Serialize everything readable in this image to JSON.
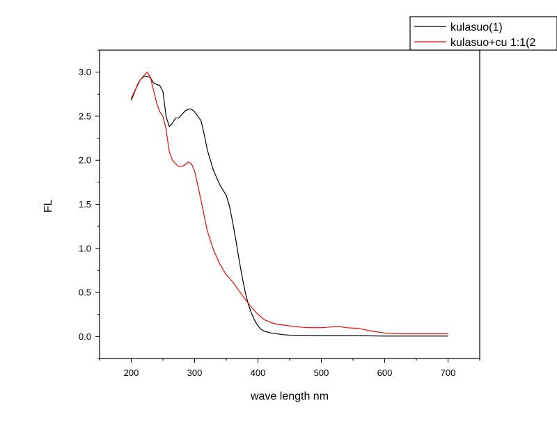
{
  "chart_data": {
    "type": "line",
    "xlabel": "wave length nm",
    "ylabel": "FL",
    "xlim": [
      150,
      750
    ],
    "ylim": [
      -0.25,
      3.25
    ],
    "xticks": [
      200,
      300,
      400,
      500,
      600,
      700
    ],
    "xtick_labels": [
      "200",
      "300",
      "400",
      "500",
      "600",
      "700"
    ],
    "yticks": [
      0.0,
      0.5,
      1.0,
      1.5,
      2.0,
      2.5,
      3.0
    ],
    "ytick_labels": [
      "0.0",
      "0.5",
      "1.0",
      "1.5",
      "2.0",
      "2.5",
      "3.0"
    ],
    "grid": false,
    "legend_position": "top-right",
    "series": [
      {
        "name": "kulasuo(1)",
        "color": "#000000",
        "x": [
          200,
          205,
          210,
          215,
          220,
          225,
          230,
          235,
          240,
          245,
          250,
          255,
          260,
          265,
          270,
          275,
          280,
          285,
          290,
          295,
          300,
          305,
          310,
          315,
          320,
          330,
          340,
          350,
          355,
          360,
          365,
          370,
          375,
          380,
          385,
          390,
          395,
          400,
          405,
          410,
          420,
          430,
          440,
          450,
          500,
          550,
          600,
          650,
          700
        ],
        "y": [
          2.68,
          2.77,
          2.86,
          2.92,
          2.95,
          2.95,
          2.94,
          2.88,
          2.86,
          2.85,
          2.78,
          2.5,
          2.38,
          2.42,
          2.48,
          2.48,
          2.52,
          2.56,
          2.58,
          2.58,
          2.55,
          2.5,
          2.45,
          2.3,
          2.12,
          1.88,
          1.72,
          1.6,
          1.48,
          1.3,
          1.1,
          0.88,
          0.68,
          0.5,
          0.36,
          0.26,
          0.18,
          0.12,
          0.08,
          0.06,
          0.04,
          0.03,
          0.02,
          0.015,
          0.01,
          0.01,
          0.005,
          0.005,
          0.005
        ]
      },
      {
        "name": "kulasuo+cu 1:1(2",
        "color": "#ff0000",
        "x": [
          200,
          205,
          210,
          215,
          220,
          225,
          230,
          235,
          240,
          245,
          250,
          255,
          260,
          265,
          270,
          275,
          280,
          285,
          290,
          295,
          300,
          310,
          320,
          330,
          340,
          350,
          360,
          370,
          380,
          390,
          400,
          410,
          420,
          430,
          440,
          450,
          460,
          480,
          500,
          520,
          530,
          540,
          560,
          580,
          600,
          620,
          650,
          700
        ],
        "y": [
          2.7,
          2.78,
          2.85,
          2.92,
          2.96,
          3.0,
          2.95,
          2.8,
          2.65,
          2.55,
          2.5,
          2.35,
          2.1,
          2.0,
          1.96,
          1.93,
          1.93,
          1.95,
          1.98,
          1.96,
          1.88,
          1.55,
          1.2,
          0.98,
          0.82,
          0.7,
          0.62,
          0.52,
          0.42,
          0.33,
          0.25,
          0.19,
          0.16,
          0.14,
          0.13,
          0.12,
          0.11,
          0.1,
          0.1,
          0.11,
          0.11,
          0.1,
          0.09,
          0.06,
          0.04,
          0.03,
          0.03,
          0.03
        ]
      }
    ]
  }
}
